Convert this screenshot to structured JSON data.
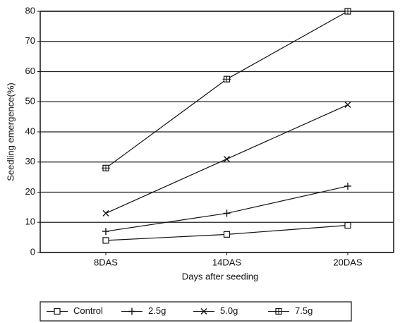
{
  "chart_data": {
    "type": "line",
    "xlabel": "Days after seeding",
    "ylabel": "Seedling emergence(%)",
    "categories": [
      "8DAS",
      "14DAS",
      "20DAS"
    ],
    "series": [
      {
        "name": "Control",
        "color": "#111111",
        "marker": "square",
        "values": [
          4,
          6,
          9
        ]
      },
      {
        "name": "2.5g",
        "color": "#111111",
        "marker": "plus",
        "values": [
          7,
          13,
          22
        ]
      },
      {
        "name": "5.0g",
        "color": "#111111",
        "marker": "x",
        "values": [
          13,
          31,
          49
        ]
      },
      {
        "name": "7.5g",
        "color": "#111111",
        "marker": "square-cross",
        "values": [
          28,
          57.5,
          80
        ]
      }
    ],
    "ylim": [
      0,
      80
    ],
    "yticks": [
      0,
      10,
      20,
      30,
      40,
      50,
      60,
      70,
      80
    ],
    "grid": true,
    "legend": "bottom"
  }
}
